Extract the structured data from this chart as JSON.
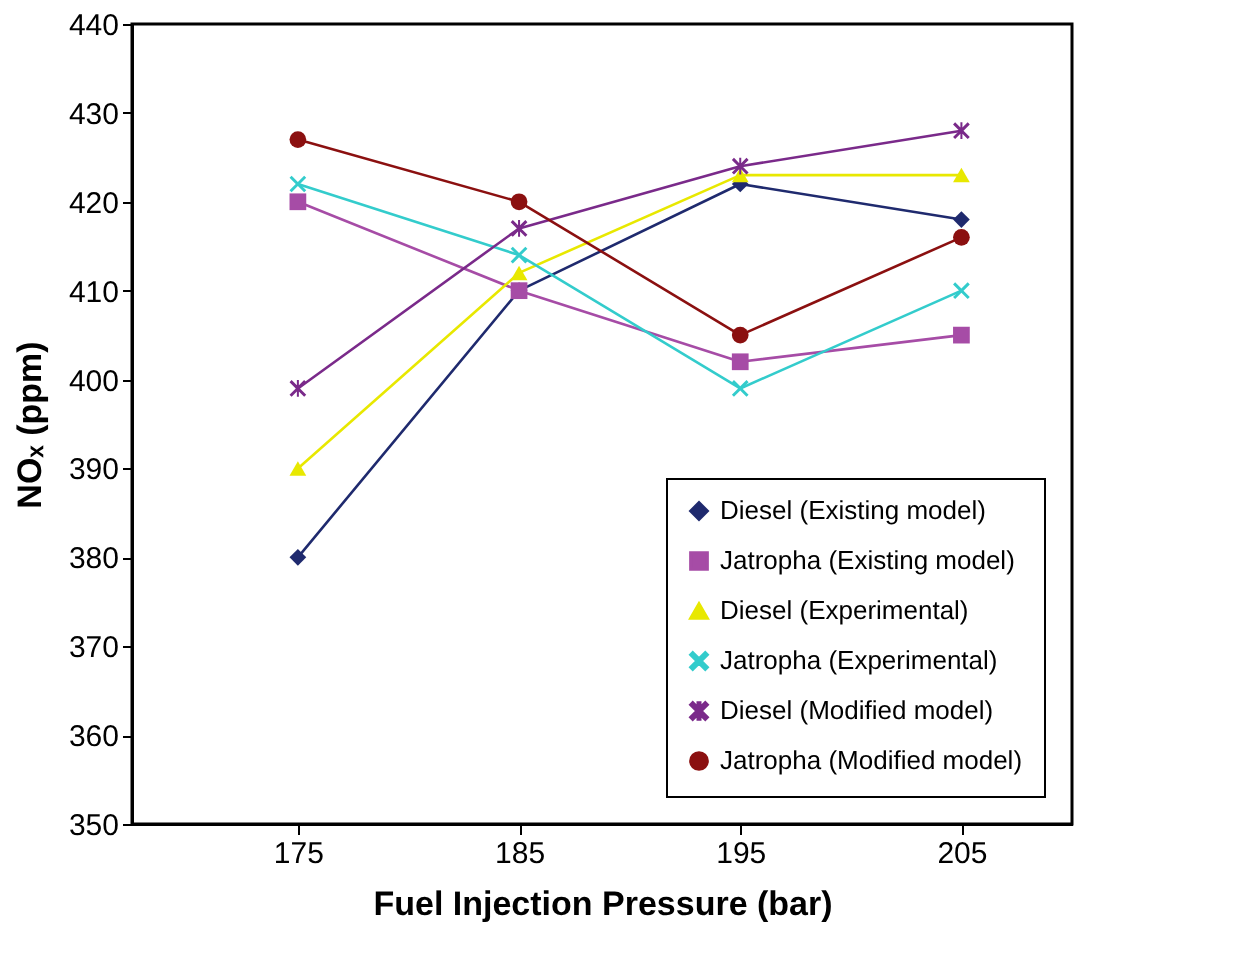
{
  "chart_data": {
    "type": "line",
    "xlabel": "Fuel Injection Pressure (bar)",
    "ylabel": "NOₓ (ppm)",
    "categories": [
      "175",
      "185",
      "195",
      "205"
    ],
    "ylim": [
      350,
      440
    ],
    "yticks": [
      350,
      360,
      370,
      380,
      390,
      400,
      410,
      420,
      430,
      440
    ],
    "grid": false,
    "legend": "bottom right",
    "line_style": "solid",
    "series": [
      {
        "name": "Diesel (Existing model)",
        "color": "#1f2a6e",
        "marker": "diamond",
        "values": [
          380,
          410,
          422,
          418
        ]
      },
      {
        "name": "Jatropha (Existing model)",
        "color": "#a64ca6",
        "marker": "square",
        "values": [
          420,
          410,
          402,
          405
        ]
      },
      {
        "name": "Diesel (Experimental)",
        "color": "#e8e800",
        "marker": "triangle",
        "values": [
          390,
          412,
          423,
          423
        ]
      },
      {
        "name": "Jatropha (Experimental)",
        "color": "#33cccc",
        "marker": "cross",
        "values": [
          422,
          414,
          399,
          410
        ]
      },
      {
        "name": "Diesel (Modified model)",
        "color": "#7a2a8a",
        "marker": "star",
        "values": [
          399,
          417,
          424,
          428
        ]
      },
      {
        "name": "Jatropha (Modified model)",
        "color": "#8b1010",
        "marker": "circle",
        "values": [
          427,
          420,
          405,
          416
        ]
      }
    ]
  }
}
